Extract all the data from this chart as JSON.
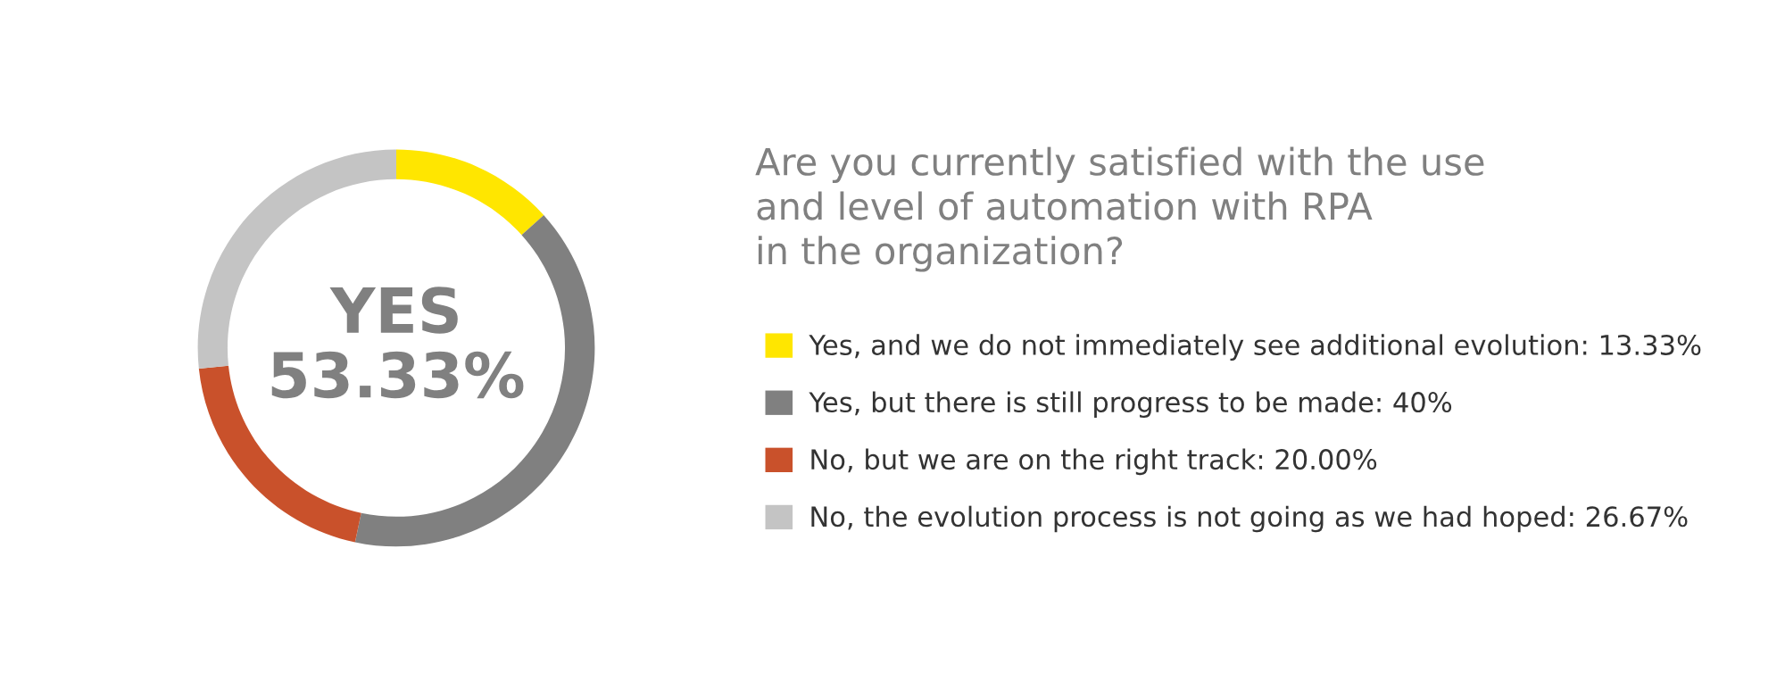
{
  "chart_data": {
    "type": "donut",
    "title": "Are you currently satisfied with the use\nand level of automation with RPA\nin the organization?",
    "categories": [
      "Yes, and we do not immediately see additional evolution",
      "Yes, but there is still progress to be made",
      "No, but we are on the right track",
      "No, the evolution process is not going as we had hoped"
    ],
    "values": [
      13.33,
      40,
      20.0,
      26.67
    ],
    "value_labels": [
      "13.33%",
      "40%",
      "20.00%",
      "26.67%"
    ],
    "colors": [
      "#ffe600",
      "#808080",
      "#c9512b",
      "#c4c4c4"
    ],
    "annotations": [
      "YES\n53.33%"
    ],
    "legend": "right"
  }
}
